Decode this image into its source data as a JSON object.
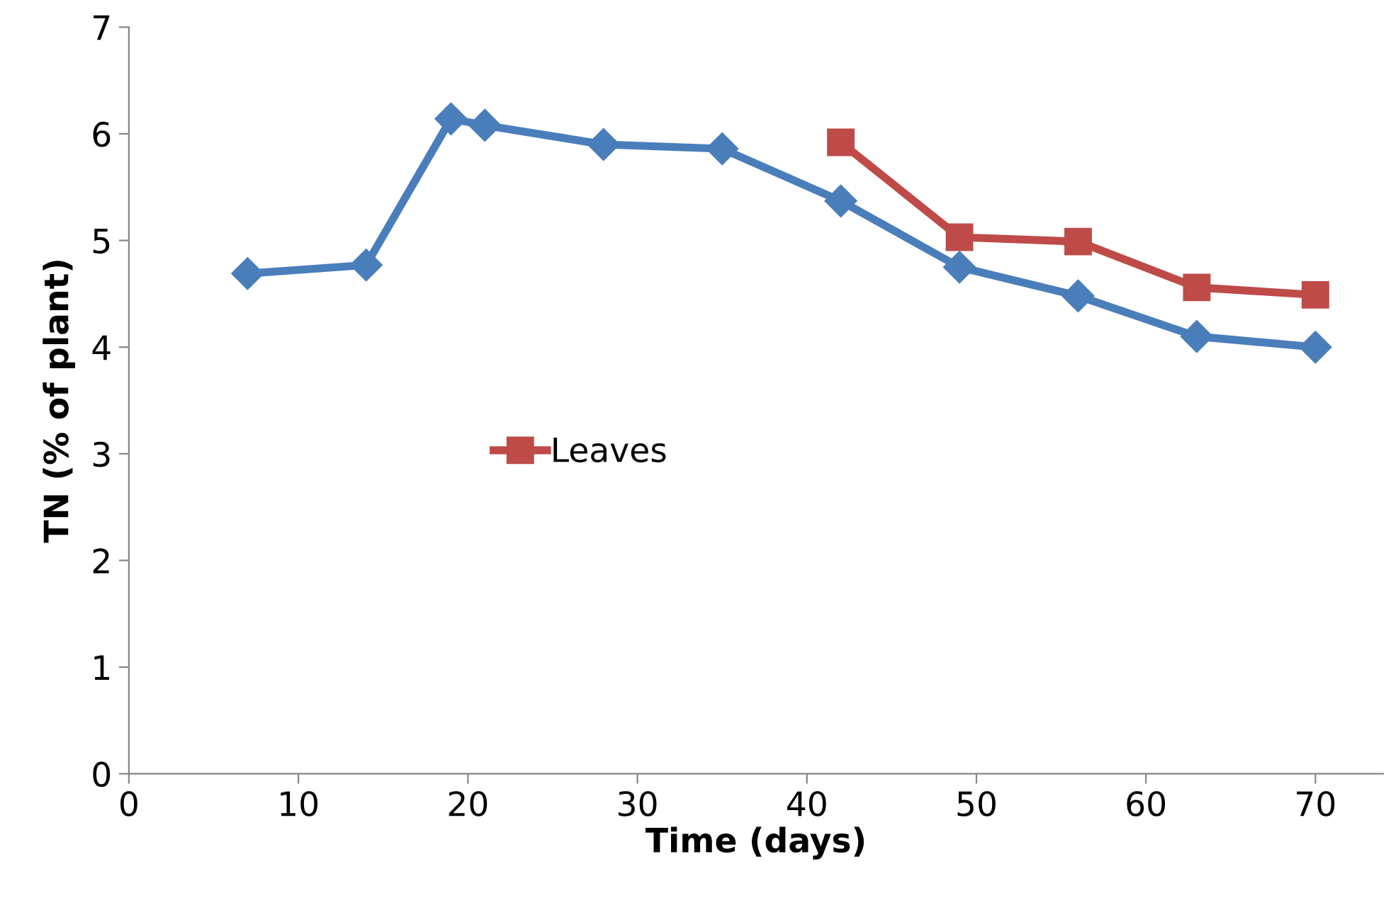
{
  "chart_data": {
    "type": "line",
    "xlabel": "Time (days)",
    "ylabel": "TN (% of plant)",
    "xlim": [
      0,
      74
    ],
    "xticks": [
      0,
      10,
      20,
      30,
      40,
      50,
      60,
      70
    ],
    "ylim": [
      0,
      7
    ],
    "yticks": [
      0,
      1,
      2,
      3,
      4,
      5,
      6,
      7
    ],
    "grid": false,
    "legend": "center",
    "line_style": "solid",
    "series": [
      {
        "color": "#4a7ebb",
        "marker": "diamond",
        "x": [
          7,
          14,
          19,
          21,
          28,
          35,
          42,
          49,
          56,
          63,
          70
        ],
        "values": [
          4.69,
          4.77,
          6.14,
          6.08,
          5.9,
          5.86,
          5.37,
          4.75,
          4.48,
          4.1,
          4.0
        ]
      },
      {
        "name": "Leaves",
        "color": "#be4b48",
        "marker": "square",
        "x": [
          42,
          49,
          56,
          63,
          70
        ],
        "values": [
          5.92,
          5.03,
          4.99,
          4.56,
          4.49
        ]
      }
    ]
  }
}
